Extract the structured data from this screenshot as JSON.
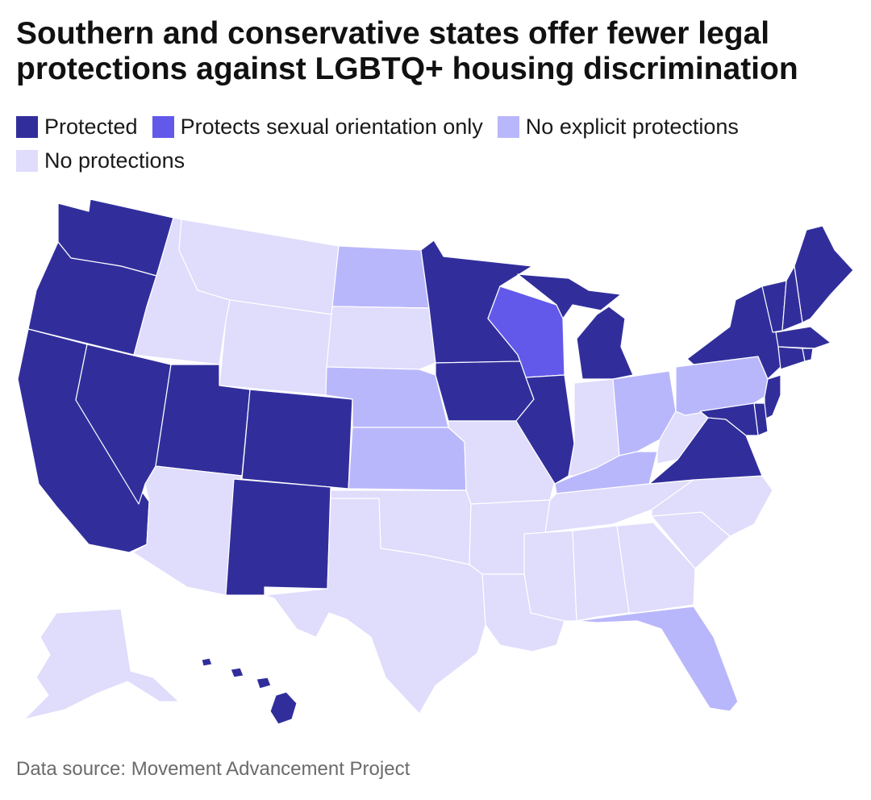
{
  "title": "Southern and conservative states offer fewer legal protections against LGBTQ+ housing discrimination",
  "legend": [
    {
      "key": "protected",
      "label": "Protected",
      "color": "#312e9c"
    },
    {
      "key": "orientation",
      "label": "Protects sexual orientation only",
      "color": "#6259ea"
    },
    {
      "key": "no_explicit",
      "label": "No explicit protections",
      "color": "#b9b7fb"
    },
    {
      "key": "none",
      "label": "No protections",
      "color": "#dfdcfc"
    }
  ],
  "source": "Data source: Movement Advancement Project",
  "map_data": {
    "WA": "protected",
    "OR": "protected",
    "CA": "protected",
    "NV": "protected",
    "UT": "protected",
    "CO": "protected",
    "NM": "protected",
    "MN": "protected",
    "IA": "protected",
    "IL": "protected",
    "MI": "protected",
    "NY": "protected",
    "VT": "protected",
    "NH": "protected",
    "ME": "protected",
    "MA": "protected",
    "CT": "protected",
    "RI": "protected",
    "NJ": "protected",
    "DE": "protected",
    "MD": "protected",
    "VA": "protected",
    "HI": "protected",
    "WI": "orientation",
    "ND": "no_explicit",
    "NE": "no_explicit",
    "KS": "no_explicit",
    "OH": "no_explicit",
    "PA": "no_explicit",
    "KY": "no_explicit",
    "FL": "no_explicit",
    "MT": "none",
    "ID": "none",
    "WY": "none",
    "SD": "none",
    "AZ": "none",
    "TX": "none",
    "OK": "none",
    "MO": "none",
    "AR": "none",
    "LA": "none",
    "MS": "none",
    "AL": "none",
    "GA": "none",
    "SC": "none",
    "NC": "none",
    "TN": "none",
    "IN": "none",
    "WV": "none",
    "AK": "none"
  }
}
